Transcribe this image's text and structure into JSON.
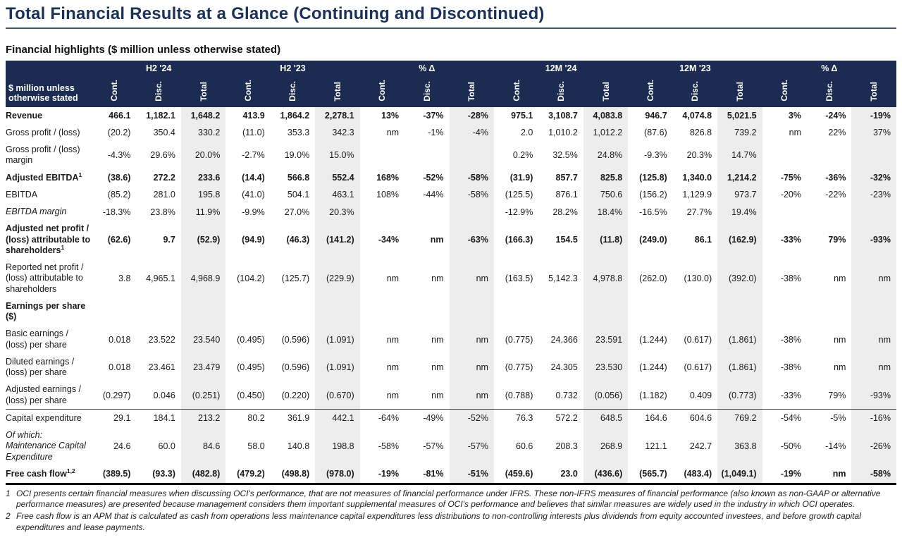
{
  "page": {
    "title": "Total Financial Results at a Glance (Continuing and Discontinued)",
    "subtitle": "Financial highlights ($ million unless otherwise stated)"
  },
  "table": {
    "corner_label": "$ million unless otherwise stated",
    "groups": [
      "H2 '24",
      "H2 '23",
      "% Δ",
      "12M '24",
      "12M '23",
      "% Δ"
    ],
    "subcolumns": [
      "Cont.",
      "Disc.",
      "Total"
    ],
    "rows": [
      {
        "label": "Revenue",
        "sup": "",
        "class": "bold",
        "values": [
          "466.1",
          "1,182.1",
          "1,648.2",
          "413.9",
          "1,864.2",
          "2,278.1",
          "13%",
          "-37%",
          "-28%",
          "975.1",
          "3,108.7",
          "4,083.8",
          "946.7",
          "4,074.8",
          "5,021.5",
          "3%",
          "-24%",
          "-19%"
        ]
      },
      {
        "label": "Gross profit / (loss)",
        "sup": "",
        "class": "normal",
        "values": [
          "(20.2)",
          "350.4",
          "330.2",
          "(11.0)",
          "353.3",
          "342.3",
          "nm",
          "-1%",
          "-4%",
          "2.0",
          "1,010.2",
          "1,012.2",
          "(87.6)",
          "826.8",
          "739.2",
          "nm",
          "22%",
          "37%"
        ]
      },
      {
        "label": "Gross profit / (loss) margin",
        "sup": "",
        "class": "normal",
        "values": [
          "-4.3%",
          "29.6%",
          "20.0%",
          "-2.7%",
          "19.0%",
          "15.0%",
          "",
          "",
          "",
          "0.2%",
          "32.5%",
          "24.8%",
          "-9.3%",
          "20.3%",
          "14.7%",
          "",
          "",
          ""
        ]
      },
      {
        "label": "Adjusted EBITDA",
        "sup": "1",
        "class": "bold",
        "values": [
          "(38.6)",
          "272.2",
          "233.6",
          "(14.4)",
          "566.8",
          "552.4",
          "168%",
          "-52%",
          "-58%",
          "(31.9)",
          "857.7",
          "825.8",
          "(125.8)",
          "1,340.0",
          "1,214.2",
          "-75%",
          "-36%",
          "-32%"
        ]
      },
      {
        "label": "EBITDA",
        "sup": "",
        "class": "normal",
        "values": [
          "(85.2)",
          "281.0",
          "195.8",
          "(41.0)",
          "504.1",
          "463.1",
          "108%",
          "-44%",
          "-58%",
          "(125.5)",
          "876.1",
          "750.6",
          "(156.2)",
          "1,129.9",
          "973.7",
          "-20%",
          "-22%",
          "-23%"
        ]
      },
      {
        "label": "EBITDA margin",
        "sup": "",
        "class": "italic",
        "values": [
          "-18.3%",
          "23.8%",
          "11.9%",
          "-9.9%",
          "27.0%",
          "20.3%",
          "",
          "",
          "",
          "-12.9%",
          "28.2%",
          "18.4%",
          "-16.5%",
          "27.7%",
          "19.4%",
          "",
          "",
          ""
        ]
      },
      {
        "label": "Adjusted net profit / (loss) attributable to shareholders",
        "sup": "1",
        "class": "bold",
        "values": [
          "(62.6)",
          "9.7",
          "(52.9)",
          "(94.9)",
          "(46.3)",
          "(141.2)",
          "-34%",
          "nm",
          "-63%",
          "(166.3)",
          "154.5",
          "(11.8)",
          "(249.0)",
          "86.1",
          "(162.9)",
          "-33%",
          "79%",
          "-93%"
        ]
      },
      {
        "label": "Reported net profit / (loss) attributable to shareholders",
        "sup": "",
        "class": "normal",
        "values": [
          "3.8",
          "4,965.1",
          "4,968.9",
          "(104.2)",
          "(125.7)",
          "(229.9)",
          "nm",
          "nm",
          "nm",
          "(163.5)",
          "5,142.3",
          "4,978.8",
          "(262.0)",
          "(130.0)",
          "(392.0)",
          "-38%",
          "nm",
          "nm"
        ]
      },
      {
        "label": "Earnings per share ($)",
        "sup": "",
        "class": "section",
        "values": [
          "",
          "",
          "",
          "",
          "",
          "",
          "",
          "",
          "",
          "",
          "",
          "",
          "",
          "",
          "",
          "",
          "",
          ""
        ]
      },
      {
        "label": "Basic earnings / (loss) per share",
        "sup": "",
        "class": "normal",
        "values": [
          "0.018",
          "23.522",
          "23.540",
          "(0.495)",
          "(0.596)",
          "(1.091)",
          "nm",
          "nm",
          "nm",
          "(0.775)",
          "24.366",
          "23.591",
          "(1.244)",
          "(0.617)",
          "(1.861)",
          "-38%",
          "nm",
          "nm"
        ]
      },
      {
        "label": "Diluted earnings / (loss) per share",
        "sup": "",
        "class": "normal",
        "values": [
          "0.018",
          "23.461",
          "23.479",
          "(0.495)",
          "(0.596)",
          "(1.091)",
          "nm",
          "nm",
          "nm",
          "(0.775)",
          "24.305",
          "23.530",
          "(1.244)",
          "(0.617)",
          "(1.861)",
          "-38%",
          "nm",
          "nm"
        ]
      },
      {
        "label": "Adjusted earnings / (loss) per share",
        "sup": "",
        "class": "normal",
        "values": [
          "(0.297)",
          "0.046",
          "(0.251)",
          "(0.450)",
          "(0.220)",
          "(0.670)",
          "nm",
          "nm",
          "nm",
          "(0.788)",
          "0.732",
          "(0.056)",
          "(1.182)",
          "0.409",
          "(0.773)",
          "-33%",
          "79%",
          "-93%"
        ]
      },
      {
        "label": "Capital expenditure",
        "sup": "",
        "class": "normal bt",
        "values": [
          "29.1",
          "184.1",
          "213.2",
          "80.2",
          "361.9",
          "442.1",
          "-64%",
          "-49%",
          "-52%",
          "76.3",
          "572.2",
          "648.5",
          "164.6",
          "604.6",
          "769.2",
          "-54%",
          "-5%",
          "-16%"
        ]
      },
      {
        "label": "Of which: Maintenance Capital Expenditure",
        "sup": "",
        "class": "italic",
        "values": [
          "24.6",
          "60.0",
          "84.6",
          "58.0",
          "140.8",
          "198.8",
          "-58%",
          "-57%",
          "-57%",
          "60.6",
          "208.3",
          "268.9",
          "121.1",
          "242.7",
          "363.8",
          "-50%",
          "-14%",
          "-26%"
        ]
      },
      {
        "label": "Free cash flow",
        "sup": "1,2",
        "class": "bold bb-thick",
        "values": [
          "(389.5)",
          "(93.3)",
          "(482.8)",
          "(479.2)",
          "(498.8)",
          "(978.0)",
          "-19%",
          "-81%",
          "-51%",
          "(459.6)",
          "23.0",
          "(436.6)",
          "(565.7)",
          "(483.4)",
          "(1,049.1)",
          "-19%",
          "nm",
          "-58%"
        ]
      }
    ]
  },
  "footnotes": [
    {
      "num": "1",
      "text": "OCI presents certain financial measures when discussing OCI's performance, that are not measures of financial performance under IFRS. These non-IFRS measures of financial performance (also known as non-GAAP or alternative performance measures) are presented because management considers them important supplemental measures of OCI's performance and believes that similar measures are widely used in the industry in which OCI operates."
    },
    {
      "num": "2",
      "text": "Free cash flow is an APM that is calculated as cash from operations less maintenance capital expenditures less distributions to non-controlling interests plus dividends from equity accounted investees, and before growth capital expenditures and lease payments."
    }
  ]
}
